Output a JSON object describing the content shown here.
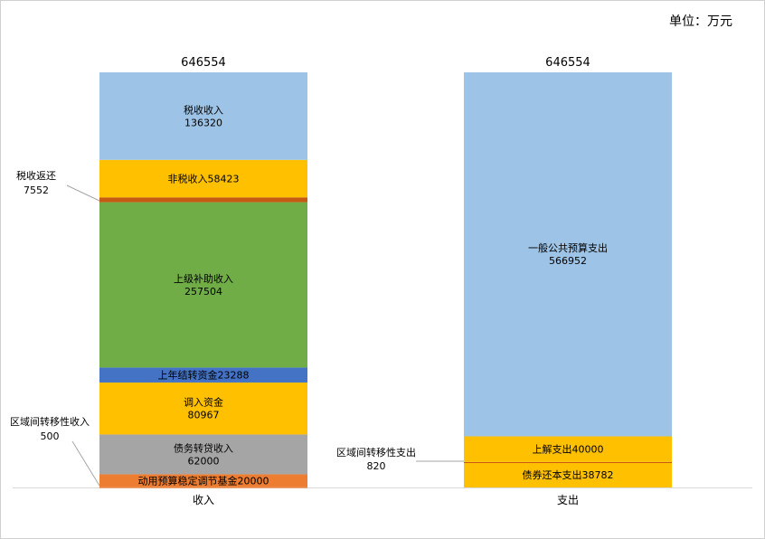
{
  "unit_label": "单位：万元",
  "chart_data": {
    "type": "bar",
    "stacked": true,
    "categories": [
      "收入",
      "支出"
    ],
    "totals": [
      "646554",
      "646554"
    ],
    "ylim": [
      0,
      646554
    ],
    "grid": false,
    "colors": {
      "tax": "#9dc3e6",
      "nontax": "#ffc000",
      "taxrefund": "#c55a11",
      "subsidy": "#70ad47",
      "carryover": "#4472c4",
      "transfer": "#ffc000",
      "bond": "#a5a5a5",
      "fund": "#ed7d31",
      "interregional_in": "#ed7d31",
      "general": "#9dc3e6",
      "remit": "#ffc000",
      "interregional_out": "#c55a11",
      "repay": "#ffc000"
    },
    "stacks": [
      {
        "category": "收入",
        "segments": [
          {
            "key": "interregional_in",
            "value": 500,
            "inline": false
          },
          {
            "key": "fund",
            "value": 20000,
            "line1": "动用预算稳定调节基金20000",
            "line2": ""
          },
          {
            "key": "bond",
            "value": 62000,
            "line1": "债务转贷收入",
            "line2": "62000"
          },
          {
            "key": "transfer",
            "value": 80967,
            "line1": "调入资金",
            "line2": "80967"
          },
          {
            "key": "carryover",
            "value": 23288,
            "line1": "上年结转资金23288",
            "line2": ""
          },
          {
            "key": "subsidy",
            "value": 257504,
            "line1": "上级补助收入",
            "line2": "257504"
          },
          {
            "key": "taxrefund",
            "value": 7552,
            "inline": false
          },
          {
            "key": "nontax",
            "value": 58423,
            "line1": "非税收入58423",
            "line2": ""
          },
          {
            "key": "tax",
            "value": 136320,
            "line1": "税收收入",
            "line2": "136320"
          }
        ]
      },
      {
        "category": "支出",
        "segments": [
          {
            "key": "repay",
            "value": 38782,
            "line1": "债券还本支出38782",
            "line2": ""
          },
          {
            "key": "interregional_out",
            "value": 820,
            "inline": false
          },
          {
            "key": "remit",
            "value": 40000,
            "line1": "上解支出40000",
            "line2": ""
          },
          {
            "key": "general",
            "value": 566952,
            "line1": "一般公共预算支出",
            "line2": "566952"
          }
        ]
      }
    ],
    "annotations": [
      {
        "key": "taxrefund",
        "stack": 0,
        "label": "税收返还",
        "value": "7552"
      },
      {
        "key": "interregional_in",
        "stack": 0,
        "label": "区域间转移性收入",
        "value": "500"
      },
      {
        "key": "interregional_out",
        "stack": 1,
        "label": "区域间转移性支出",
        "value": "820"
      }
    ]
  }
}
